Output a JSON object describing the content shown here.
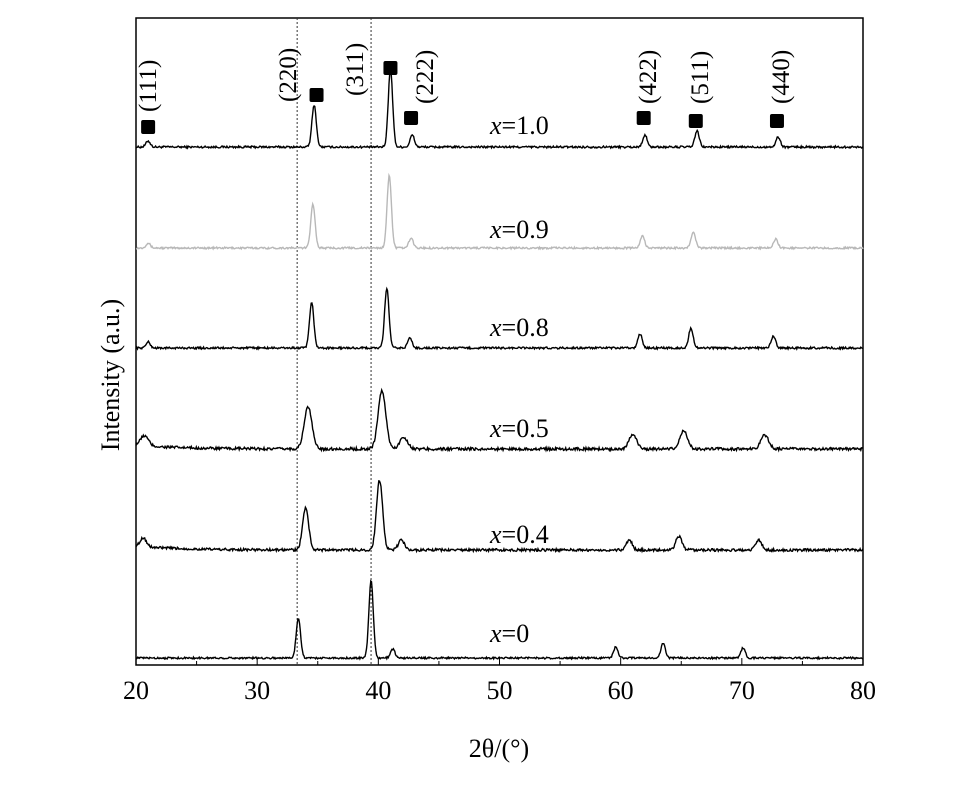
{
  "chart_data": {
    "type": "line",
    "xlabel": "2θ/(°)",
    "ylabel": "Intensity (a.u.)",
    "xlim": [
      20,
      80
    ],
    "x_ticks": [
      20,
      30,
      40,
      50,
      60,
      70,
      80
    ],
    "reference_lines": [
      33.3,
      39.4
    ],
    "peak_labels": [
      {
        "hkl": "(111)",
        "x": 21.0
      },
      {
        "hkl": "(220)",
        "x": 34.9
      },
      {
        "hkl": "(311)",
        "x": 41.0
      },
      {
        "hkl": "(222)",
        "x": 42.7
      },
      {
        "hkl": "(422)",
        "x": 61.9
      },
      {
        "hkl": "(511)",
        "x": 66.2
      },
      {
        "hkl": "(440)",
        "x": 72.9
      }
    ],
    "series": [
      {
        "name": "x=1.0",
        "x_text": "x",
        "value_text": "=1.0",
        "color": "#000000",
        "peaks": [
          [
            21.0,
            6
          ],
          [
            34.7,
            42
          ],
          [
            41.0,
            78
          ],
          [
            42.8,
            12
          ],
          [
            62.0,
            12
          ],
          [
            66.3,
            16
          ],
          [
            73.0,
            10
          ]
        ]
      },
      {
        "name": "x=0.9",
        "x_text": "x",
        "value_text": "=0.9",
        "color": "#b8b8b8",
        "peaks": [
          [
            21.0,
            5
          ],
          [
            34.6,
            44
          ],
          [
            40.9,
            72
          ],
          [
            42.7,
            10
          ],
          [
            61.8,
            12
          ],
          [
            66.0,
            16
          ],
          [
            72.8,
            9
          ]
        ]
      },
      {
        "name": "x=0.8",
        "x_text": "x",
        "value_text": "=0.8",
        "color": "#000000",
        "peaks": [
          [
            21.0,
            6
          ],
          [
            34.5,
            45
          ],
          [
            40.7,
            60
          ],
          [
            42.6,
            10
          ],
          [
            61.6,
            14
          ],
          [
            65.8,
            20
          ],
          [
            72.6,
            12
          ]
        ]
      },
      {
        "name": "x=0.5",
        "x_text": "x",
        "value_text": "=0.5",
        "color": "#000000",
        "peaks": [
          [
            20.7,
            10
          ],
          [
            34.2,
            42
          ],
          [
            40.3,
            58
          ],
          [
            42.1,
            12
          ],
          [
            61.0,
            14
          ],
          [
            65.2,
            18
          ],
          [
            71.9,
            14
          ]
        ]
      },
      {
        "name": "x=0.4",
        "x_text": "x",
        "value_text": "=0.4",
        "color": "#000000",
        "peaks": [
          [
            20.6,
            9
          ],
          [
            34.0,
            42
          ],
          [
            40.1,
            70
          ],
          [
            41.9,
            10
          ],
          [
            60.7,
            10
          ],
          [
            64.8,
            14
          ],
          [
            71.4,
            10
          ]
        ]
      },
      {
        "name": "x=0",
        "x_text": "x",
        "value_text": "=0",
        "color": "#000000",
        "peaks": [
          [
            33.4,
            40
          ],
          [
            39.4,
            78
          ],
          [
            41.2,
            9
          ],
          [
            59.6,
            11
          ],
          [
            63.5,
            15
          ],
          [
            70.1,
            10
          ]
        ]
      }
    ]
  }
}
